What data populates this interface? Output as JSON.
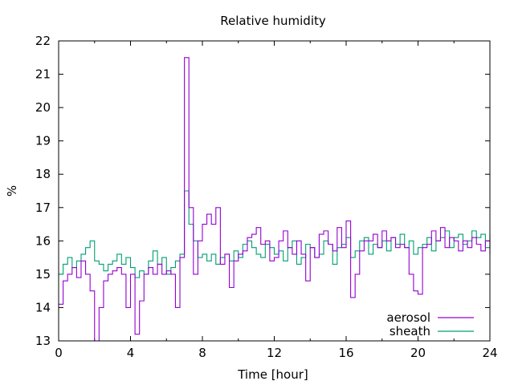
{
  "chart_data": {
    "type": "line",
    "title": "Relative humidity",
    "xlabel": "Time [hour]",
    "ylabel": "%",
    "xlim": [
      0,
      24
    ],
    "ylim": [
      13,
      22
    ],
    "xticks": [
      "0",
      "4",
      "8",
      "12",
      "16",
      "20",
      "24"
    ],
    "yticks": [
      "13",
      "14",
      "15",
      "16",
      "17",
      "18",
      "19",
      "20",
      "21",
      "22"
    ],
    "x_step": 0.25,
    "legend_position": "bottom-right",
    "series": [
      {
        "name": "aerosol",
        "color": "#9400d3",
        "values": [
          14.1,
          14.8,
          15.0,
          15.2,
          14.9,
          15.4,
          15.0,
          14.5,
          13.0,
          14.0,
          14.8,
          15.0,
          15.1,
          15.2,
          15.0,
          14.0,
          15.0,
          13.2,
          14.2,
          15.0,
          15.2,
          15.0,
          15.3,
          15.0,
          15.1,
          15.0,
          14.0,
          15.5,
          21.5,
          17.0,
          15.0,
          16.0,
          16.5,
          16.8,
          16.5,
          17.0,
          15.3,
          15.6,
          14.6,
          15.4,
          15.6,
          15.7,
          16.1,
          16.2,
          16.4,
          15.9,
          16.0,
          15.4,
          15.5,
          16.0,
          16.3,
          15.8,
          15.6,
          16.0,
          15.6,
          14.8,
          15.8,
          15.5,
          16.2,
          16.3,
          15.9,
          15.7,
          16.4,
          15.8,
          16.6,
          14.3,
          15.0,
          15.7,
          16.0,
          16.0,
          16.2,
          15.8,
          16.3,
          16.0,
          16.1,
          15.8,
          15.9,
          15.8,
          15.0,
          14.5,
          14.4,
          15.8,
          15.9,
          16.3,
          16.0,
          16.4,
          15.8,
          16.1,
          16.0,
          15.7,
          16.0,
          15.8,
          16.1,
          15.9,
          15.7,
          16.0,
          15.6
        ]
      },
      {
        "name": "sheath",
        "color": "#009e73",
        "values": [
          15.0,
          15.3,
          15.5,
          15.2,
          15.4,
          15.6,
          15.8,
          16.0,
          15.4,
          15.3,
          15.1,
          15.3,
          15.4,
          15.6,
          15.3,
          15.5,
          15.2,
          14.9,
          15.1,
          15.0,
          15.4,
          15.7,
          15.3,
          15.5,
          15.0,
          15.2,
          15.4,
          15.6,
          17.5,
          16.5,
          16.0,
          15.5,
          15.6,
          15.4,
          15.6,
          15.3,
          15.5,
          15.6,
          15.4,
          15.7,
          15.5,
          15.9,
          16.0,
          15.8,
          15.6,
          15.5,
          15.9,
          15.8,
          15.6,
          15.7,
          15.4,
          15.8,
          16.0,
          15.3,
          15.5,
          15.9,
          15.8,
          15.5,
          15.6,
          16.0,
          15.9,
          15.3,
          15.8,
          15.9,
          16.1,
          15.5,
          15.7,
          16.0,
          16.1,
          15.6,
          15.9,
          15.8,
          16.0,
          15.7,
          16.1,
          15.9,
          16.2,
          15.8,
          16.0,
          15.6,
          15.8,
          15.9,
          16.1,
          15.7,
          16.0,
          16.1,
          16.3,
          15.8,
          16.1,
          16.2,
          15.9,
          16.0,
          16.3,
          16.1,
          16.2,
          15.8,
          16.2
        ]
      }
    ]
  }
}
